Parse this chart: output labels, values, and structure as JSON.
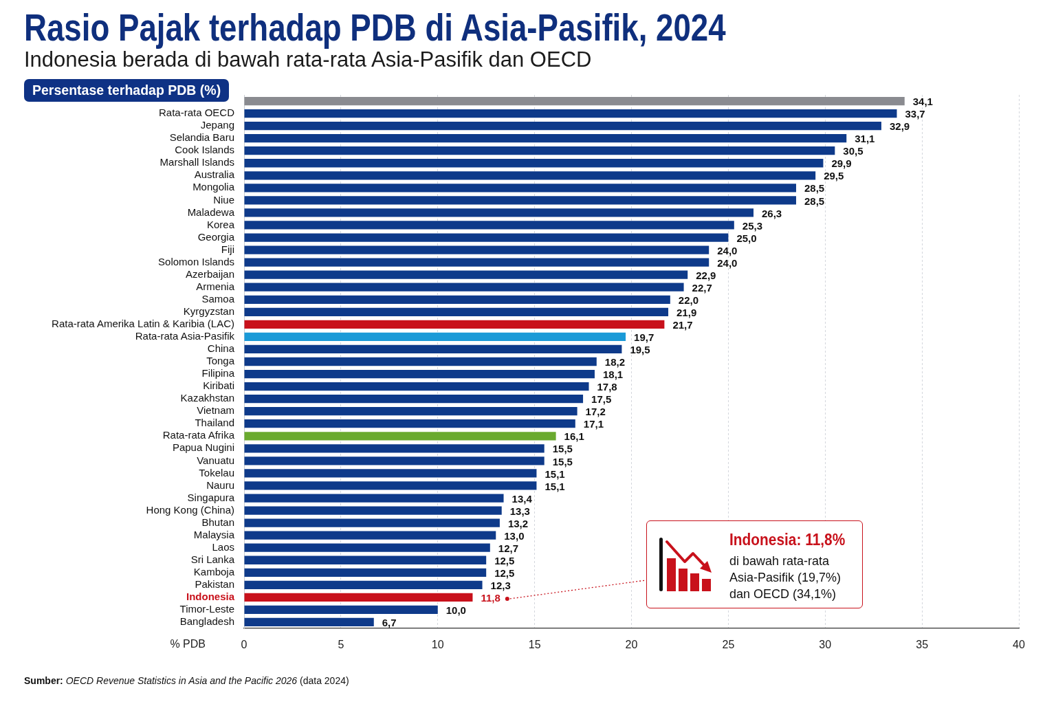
{
  "chart_data": {
    "type": "bar",
    "orientation": "horizontal",
    "title": "Rasio Pajak terhadap PDB di Asia-Pasifik, 2024",
    "subtitle": "Indonesia berada di bawah rata-rata Asia-Pasifik dan OECD",
    "xlabel": "% PDB",
    "categories": [
      null,
      "Rata-rata OECD",
      "Jepang",
      "Selandia Baru",
      "Cook Islands",
      "Marshall Islands",
      "Australia",
      "Mongolia",
      "Niue",
      "Maladewa",
      "Korea",
      "Georgia",
      "Fiji",
      "Solomon Islands",
      "Azerbaijan",
      "Armenia",
      "Samoa",
      "Kyrgyzstan",
      "Rata-rata Amerika Latin & Karibia (LAC)",
      "Rata-rata Asia-Pasifik",
      "China",
      "Tonga",
      "Filipina",
      "Kiribati",
      "Kazakhstan",
      "Vietnam",
      "Thailand",
      "Rata-rata Afrika",
      "Papua Nugini",
      "Vanuatu",
      "Tokelau",
      "Nauru",
      "Singapura",
      "Hong Kong (China)",
      "Bhutan",
      "Malaysia",
      "Laos",
      "Sri Lanka",
      "Kamboja",
      "Pakistan",
      "Indonesia",
      "Timor-Leste",
      "Bangladesh"
    ],
    "values": [
      34.1,
      33.7,
      32.9,
      31.1,
      30.5,
      29.9,
      29.5,
      28.5,
      28.5,
      26.3,
      25.3,
      25.0,
      24.0,
      24.0,
      22.9,
      22.7,
      22.0,
      21.9,
      21.7,
      19.7,
      19.5,
      18.2,
      18.1,
      17.8,
      17.5,
      17.2,
      17.1,
      16.1,
      15.5,
      15.5,
      15.1,
      15.1,
      13.4,
      13.3,
      13.2,
      13.0,
      12.7,
      12.5,
      12.5,
      12.3,
      11.8,
      10.0,
      6.7
    ],
    "colors": [
      "#8a8b90",
      "#0e3a8a",
      "#0e3a8a",
      "#0e3a8a",
      "#0e3a8a",
      "#0e3a8a",
      "#0e3a8a",
      "#0e3a8a",
      "#0e3a8a",
      "#0e3a8a",
      "#0e3a8a",
      "#0e3a8a",
      "#0e3a8a",
      "#0e3a8a",
      "#0e3a8a",
      "#0e3a8a",
      "#0e3a8a",
      "#0e3a8a",
      "#c8111b",
      "#1b9ad7",
      "#0e3a8a",
      "#0e3a8a",
      "#0e3a8a",
      "#0e3a8a",
      "#0e3a8a",
      "#0e3a8a",
      "#0e3a8a",
      "#6aaa2f",
      "#0e3a8a",
      "#0e3a8a",
      "#0e3a8a",
      "#0e3a8a",
      "#0e3a8a",
      "#0e3a8a",
      "#0e3a8a",
      "#0e3a8a",
      "#0e3a8a",
      "#0e3a8a",
      "#0e3a8a",
      "#0e3a8a",
      "#c8111b",
      "#0e3a8a",
      "#0e3a8a"
    ],
    "value_labels": [
      "34,1",
      "33,7",
      "32,9",
      "31,1",
      "30,5",
      "29,9",
      "29,5",
      "28,5",
      "28,5",
      "26,3",
      "25,3",
      "25,0",
      "24,0",
      "24,0",
      "22,9",
      "22,7",
      "22,0",
      "21,9",
      "21,7",
      "19,7",
      "19,5",
      "18,2",
      "18,1",
      "17,8",
      "17,5",
      "17,2",
      "17,1",
      "16,1",
      "15,5",
      "15,5",
      "15,1",
      "15,1",
      "13,4",
      "13,3",
      "13,2",
      "13,0",
      "12,7",
      "12,5",
      "12,5",
      "12,3",
      "11,8",
      "10,0",
      "6,7"
    ],
    "xlim": [
      0,
      40
    ],
    "xticks": [
      0,
      5,
      10,
      15,
      20,
      25,
      30,
      35,
      40
    ],
    "grid": "x",
    "annotations": [
      "Persentase terhadap PDB (%)",
      "Indonesia: 11,8%",
      "di bawah rata-rata Asia-Pasifik (19,7%) dan OECD (34,1%)",
      "Sumber: OECD Revenue Statistics in Asia and the Pacific 2026 (data 2024)"
    ]
  }
}
